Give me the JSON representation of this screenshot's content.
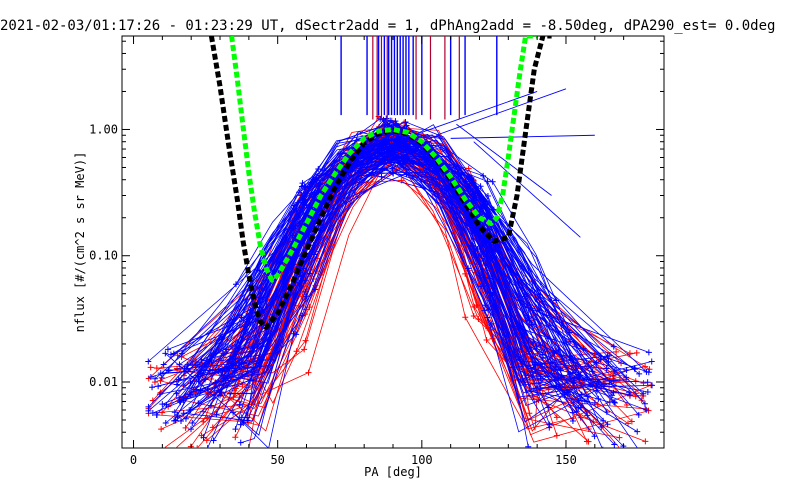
{
  "chart_data": {
    "type": "line",
    "title": "2021-02-03/01:17:26 - 01:23:29 UT, dSectr2add = 1, dPhAng2add = -8.50deg, dPA290_est=   0.0deg",
    "xlabel": "PA [deg]",
    "ylabel": "nflux [#/(cm^2 s sr MeV)]",
    "xlim": [
      -4,
      184
    ],
    "ylim": [
      0.003,
      5.5
    ],
    "yscale": "log",
    "xticks": [
      0,
      50,
      100,
      150
    ],
    "yticks": [
      0.01,
      0.1,
      1.0
    ],
    "ytick_labels": [
      "0.01",
      "0.10",
      "1.00"
    ],
    "colors": {
      "red_series": "#ff0000",
      "blue_series": "#0000ff",
      "black_fit": "#000000",
      "green_fit": "#00ff00",
      "vline_red": "#b00030",
      "vline_blue": "#0000ff"
    },
    "series": [
      {
        "name": "black-fit",
        "color": "#000000",
        "x": [
          27,
          30,
          33,
          36,
          38,
          40,
          42,
          44,
          46,
          50,
          55,
          60,
          65,
          70,
          75,
          80,
          85,
          90,
          95,
          100,
          105,
          110,
          115,
          120,
          125,
          130,
          133,
          136,
          139,
          142,
          145
        ],
        "y": [
          5.5,
          2.2,
          0.75,
          0.28,
          0.13,
          0.07,
          0.042,
          0.03,
          0.027,
          0.035,
          0.06,
          0.11,
          0.2,
          0.35,
          0.55,
          0.78,
          0.93,
          0.98,
          0.92,
          0.78,
          0.58,
          0.4,
          0.26,
          0.17,
          0.13,
          0.14,
          0.3,
          0.95,
          3.0,
          5.5,
          5.5
        ]
      },
      {
        "name": "green-fit",
        "color": "#00ff00",
        "x": [
          34,
          36,
          38,
          40,
          42,
          44,
          46,
          48,
          50,
          55,
          60,
          65,
          70,
          75,
          80,
          85,
          90,
          95,
          100,
          105,
          110,
          115,
          120,
          124,
          126,
          128,
          130,
          132,
          134,
          136,
          138,
          140
        ],
        "y": [
          5.5,
          2.5,
          1.05,
          0.45,
          0.22,
          0.12,
          0.08,
          0.064,
          0.07,
          0.11,
          0.18,
          0.3,
          0.45,
          0.65,
          0.85,
          0.97,
          1.0,
          0.95,
          0.8,
          0.6,
          0.42,
          0.28,
          0.2,
          0.18,
          0.2,
          0.3,
          0.6,
          1.3,
          2.8,
          5.5,
          5.5,
          5.5
        ]
      }
    ],
    "vlines": {
      "red_x": [
        83,
        84.5,
        86,
        88,
        98,
        103,
        108,
        113
      ],
      "blue_x": [
        72,
        81,
        85,
        87,
        88.5,
        89.5,
        90.5,
        91.5,
        92.5,
        93.5,
        94.5,
        95.5,
        97,
        100,
        110,
        115,
        126
      ]
    },
    "annotations": []
  }
}
